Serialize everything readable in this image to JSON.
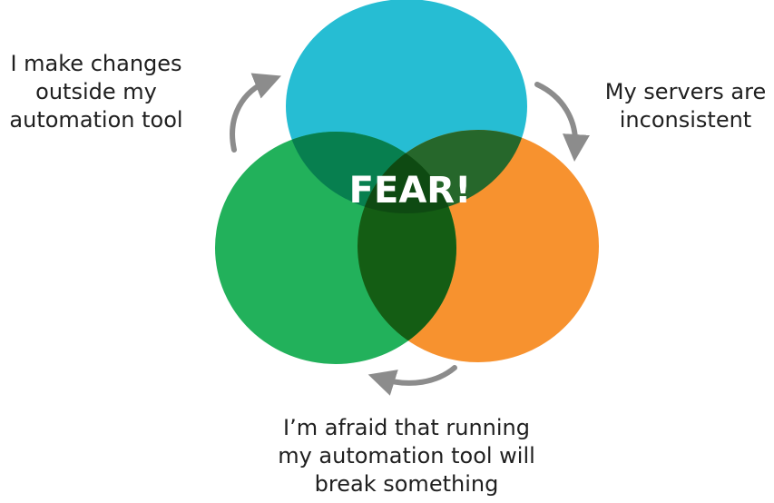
{
  "center_label": "FEAR!",
  "captions": {
    "left": [
      "I make changes",
      "outside my",
      "automation tool"
    ],
    "right": [
      "My servers are",
      "inconsistent"
    ],
    "bottom": [
      "I’m afraid that running",
      "my automation tool will",
      "break something"
    ]
  },
  "colors": {
    "top_circle": "#26bdd3",
    "left_circle": "#22b15b",
    "right_circle": "#f7922f",
    "overlap_top_left": "#077f4f",
    "overlap_top_right": "#26672b",
    "overlap_left_right": "#145d14",
    "overlap_center": "#0e4a12",
    "arrows": "#8c8c8c",
    "caption_text": "#1f1f1f",
    "center_text": "#ffffff"
  }
}
